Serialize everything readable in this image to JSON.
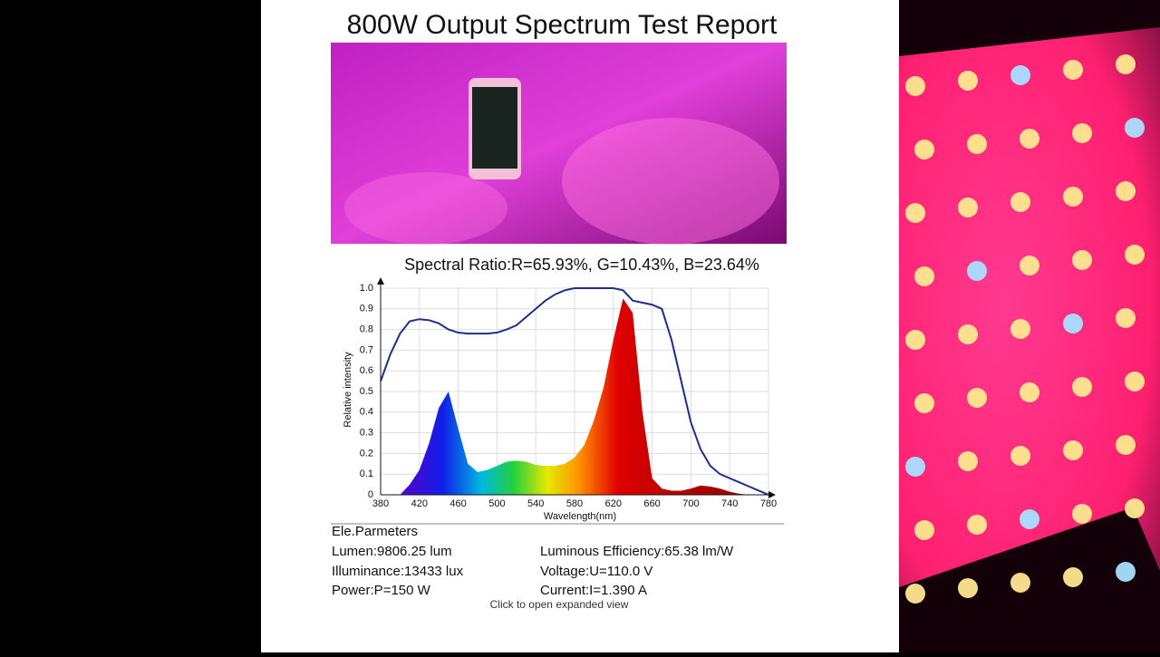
{
  "title": "800W Output Spectrum Test Report",
  "chart_data": {
    "type": "area",
    "title": "Spectral Ratio:R=65.93%, G=10.43%, B=23.64%",
    "x_label": "Wavelength(nm)",
    "y_label": "Relative intensity",
    "x": [
      380,
      390,
      400,
      410,
      420,
      430,
      440,
      450,
      460,
      470,
      480,
      490,
      500,
      510,
      520,
      530,
      540,
      550,
      560,
      570,
      580,
      590,
      600,
      610,
      620,
      630,
      640,
      650,
      660,
      670,
      680,
      690,
      700,
      710,
      720,
      730,
      740,
      750,
      760,
      770,
      780
    ],
    "series": [
      {
        "values": [
          0,
          0,
          0,
          0.05,
          0.12,
          0.25,
          0.42,
          0.5,
          0.32,
          0.15,
          0.11,
          0.12,
          0.14,
          0.16,
          0.165,
          0.16,
          0.145,
          0.14,
          0.14,
          0.15,
          0.18,
          0.24,
          0.36,
          0.52,
          0.75,
          0.95,
          0.88,
          0.4,
          0.08,
          0.03,
          0.02,
          0.02,
          0.03,
          0.045,
          0.04,
          0.03,
          0.015,
          0.005,
          0,
          0,
          0
        ]
      },
      {
        "type": "line",
        "color": "#1c2f8c",
        "values": [
          0.55,
          0.68,
          0.78,
          0.84,
          0.85,
          0.845,
          0.83,
          0.8,
          0.785,
          0.78,
          0.78,
          0.78,
          0.785,
          0.8,
          0.82,
          0.86,
          0.9,
          0.94,
          0.97,
          0.99,
          1,
          1,
          1,
          1,
          1,
          0.99,
          0.94,
          0.93,
          0.92,
          0.9,
          0.75,
          0.55,
          0.35,
          0.22,
          0.14,
          0.1,
          0.08,
          0.06,
          0.04,
          0.02,
          0
        ]
      }
    ],
    "xlim": [
      380,
      780
    ],
    "xticks": [
      380,
      420,
      460,
      500,
      540,
      580,
      620,
      660,
      700,
      740,
      780
    ],
    "ylim": [
      0,
      1
    ],
    "yticks": [
      0,
      0.1,
      0.2,
      0.3,
      0.4,
      0.5,
      0.6,
      0.7,
      0.8,
      0.9,
      {
        "value": 1,
        "label": "1.0"
      }
    ],
    "grid": true
  },
  "parameters": {
    "heading": "Ele.Parmeters",
    "left": [
      "Lumen:9806.25 lum",
      "Illuminance:13433 lux",
      "Power:P=150 W"
    ],
    "right": [
      "Luminous Efficiency:65.38 lm/W",
      "Voltage:U=110.0 V",
      "Current:I=1.390 A"
    ]
  },
  "caption": "Click to open expanded view"
}
